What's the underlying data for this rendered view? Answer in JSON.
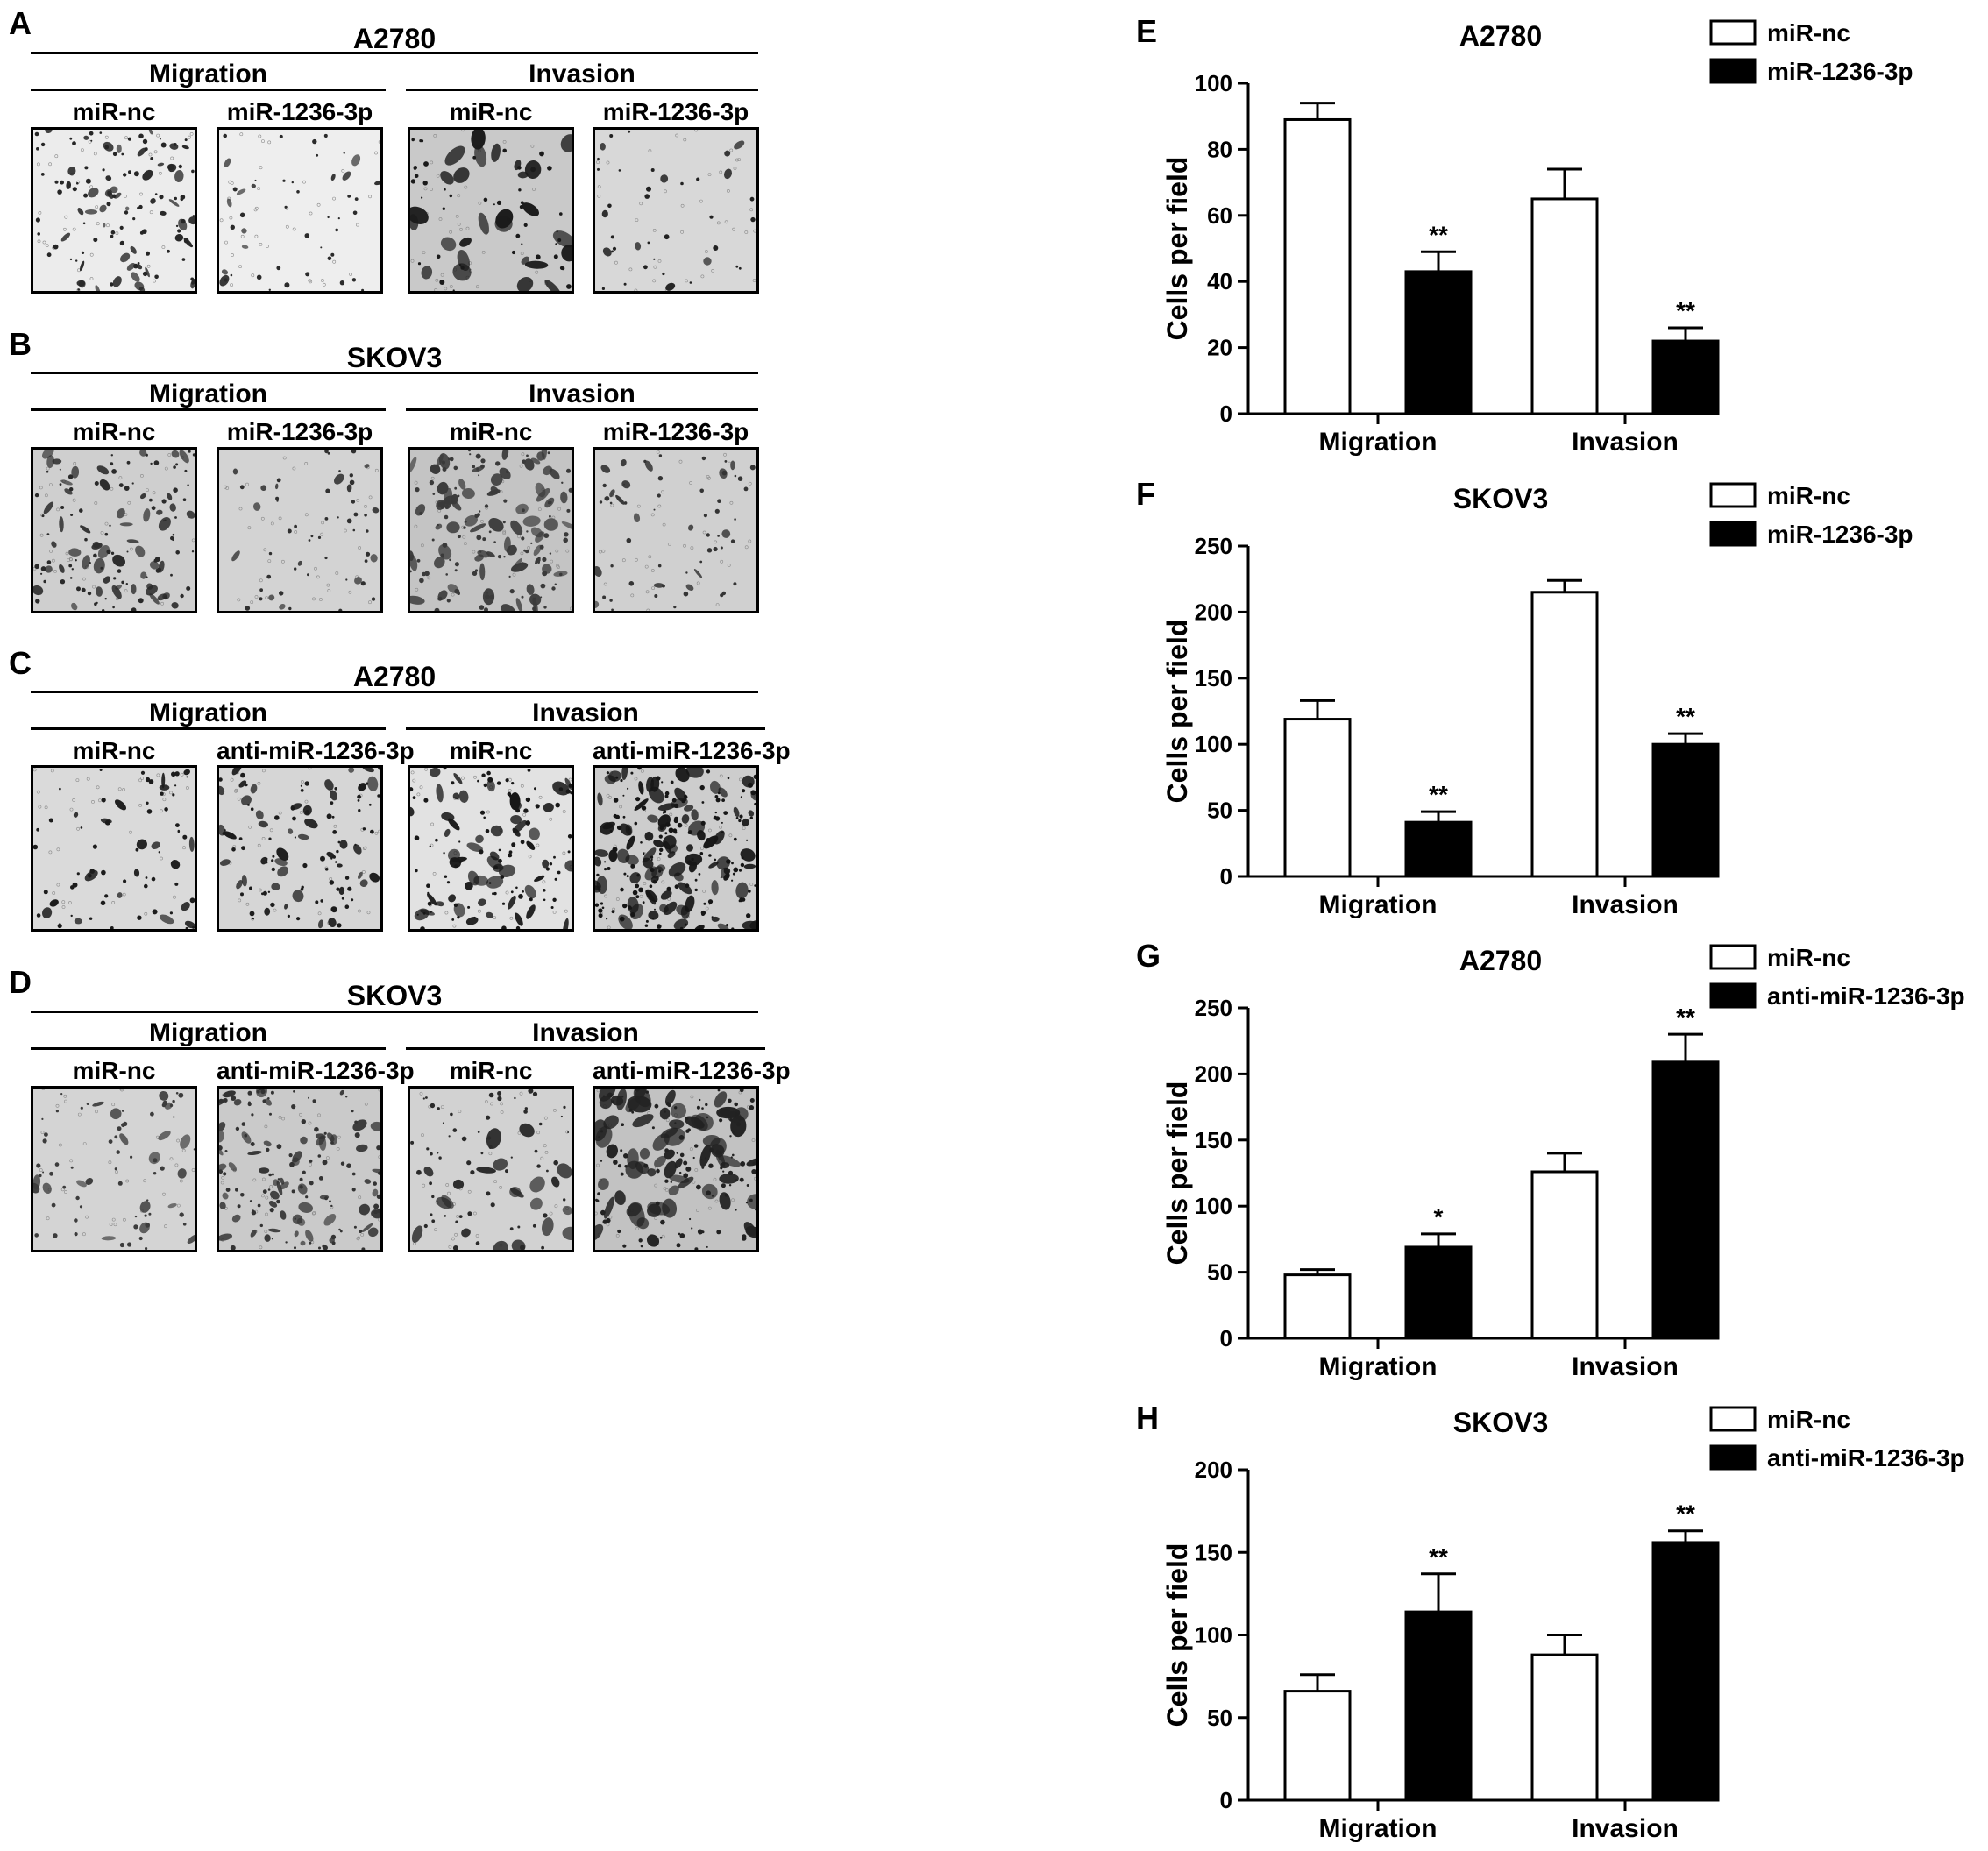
{
  "panels_left": [
    {
      "label": "A",
      "cell_line": "A2780",
      "groups": [
        {
          "title": "Migration",
          "conditions": [
            "miR-nc",
            "miR-1236-3p"
          ]
        },
        {
          "title": "Invasion",
          "conditions": [
            "miR-nc",
            "miR-1236-3p"
          ]
        }
      ]
    },
    {
      "label": "B",
      "cell_line": "SKOV3",
      "groups": [
        {
          "title": "Migration",
          "conditions": [
            "miR-nc",
            "miR-1236-3p"
          ]
        },
        {
          "title": "Invasion",
          "conditions": [
            "miR-nc",
            "miR-1236-3p"
          ]
        }
      ]
    },
    {
      "label": "C",
      "cell_line": "A2780",
      "groups": [
        {
          "title": "Migration",
          "conditions": [
            "miR-nc",
            "anti-miR-1236-3p"
          ]
        },
        {
          "title": "Invasion",
          "conditions": [
            "miR-nc",
            "anti-miR-1236-3p"
          ]
        }
      ]
    },
    {
      "label": "D",
      "cell_line": "SKOV3",
      "groups": [
        {
          "title": "Migration",
          "conditions": [
            "miR-nc",
            "anti-miR-1236-3p"
          ]
        },
        {
          "title": "Invasion",
          "conditions": [
            "miR-nc",
            "anti-miR-1236-3p"
          ]
        }
      ]
    }
  ],
  "chart_data": [
    {
      "panel": "E",
      "type": "bar",
      "title": "A2780",
      "categories": [
        "Migration",
        "Invasion"
      ],
      "ylabel": "Cells per field",
      "ylim": [
        0,
        100
      ],
      "yticks": [
        0,
        20,
        40,
        60,
        80,
        100
      ],
      "legend_position": "top-right",
      "series": [
        {
          "name": "miR-nc",
          "color": "#ffffff",
          "values": [
            89,
            65
          ],
          "errors": [
            5,
            9
          ],
          "significance": [
            "",
            ""
          ]
        },
        {
          "name": "miR-1236-3p",
          "color": "#000000",
          "values": [
            43,
            22
          ],
          "errors": [
            6,
            4
          ],
          "significance": [
            "**",
            "**"
          ]
        }
      ]
    },
    {
      "panel": "F",
      "type": "bar",
      "title": "SKOV3",
      "categories": [
        "Migration",
        "Invasion"
      ],
      "ylabel": "Cells per field",
      "ylim": [
        0,
        250
      ],
      "yticks": [
        0,
        50,
        100,
        150,
        200,
        250
      ],
      "legend_position": "top-right",
      "series": [
        {
          "name": "miR-nc",
          "color": "#ffffff",
          "values": [
            119,
            215
          ],
          "errors": [
            14,
            9
          ],
          "significance": [
            "",
            ""
          ]
        },
        {
          "name": "miR-1236-3p",
          "color": "#000000",
          "values": [
            41,
            100
          ],
          "errors": [
            8,
            8
          ],
          "significance": [
            "**",
            "**"
          ]
        }
      ]
    },
    {
      "panel": "G",
      "type": "bar",
      "title": "A2780",
      "categories": [
        "Migration",
        "Invasion"
      ],
      "ylabel": "Cells per field",
      "ylim": [
        0,
        250
      ],
      "yticks": [
        0,
        50,
        100,
        150,
        200,
        250
      ],
      "legend_position": "top-right",
      "series": [
        {
          "name": "miR-nc",
          "color": "#ffffff",
          "values": [
            48,
            126
          ],
          "errors": [
            4,
            14
          ],
          "significance": [
            "",
            ""
          ]
        },
        {
          "name": "anti-miR-1236-3p",
          "color": "#000000",
          "values": [
            69,
            209
          ],
          "errors": [
            10,
            21
          ],
          "significance": [
            "*",
            "**"
          ]
        }
      ]
    },
    {
      "panel": "H",
      "type": "bar",
      "title": "SKOV3",
      "categories": [
        "Migration",
        "Invasion"
      ],
      "ylabel": "Cells per field",
      "ylim": [
        0,
        200
      ],
      "yticks": [
        0,
        50,
        100,
        150,
        200
      ],
      "legend_position": "top-right",
      "series": [
        {
          "name": "miR-nc",
          "color": "#ffffff",
          "values": [
            66,
            88
          ],
          "errors": [
            10,
            12
          ],
          "significance": [
            "",
            ""
          ]
        },
        {
          "name": "anti-miR-1236-3p",
          "color": "#000000",
          "values": [
            114,
            156
          ],
          "errors": [
            23,
            7
          ],
          "significance": [
            "**",
            "**"
          ]
        }
      ]
    }
  ]
}
